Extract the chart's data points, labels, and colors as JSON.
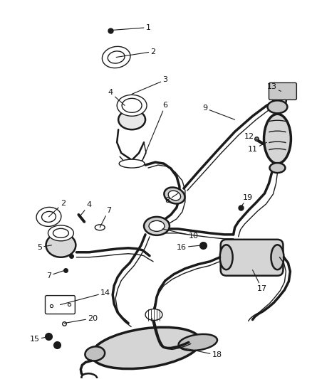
{
  "bg_color": "#ffffff",
  "lc": "#1a1a1a",
  "tc": "#111111",
  "lw": 1.8,
  "lw_thick": 2.5,
  "lw_thin": 1.0,
  "figsize": [
    4.38,
    5.33
  ],
  "dpi": 100
}
